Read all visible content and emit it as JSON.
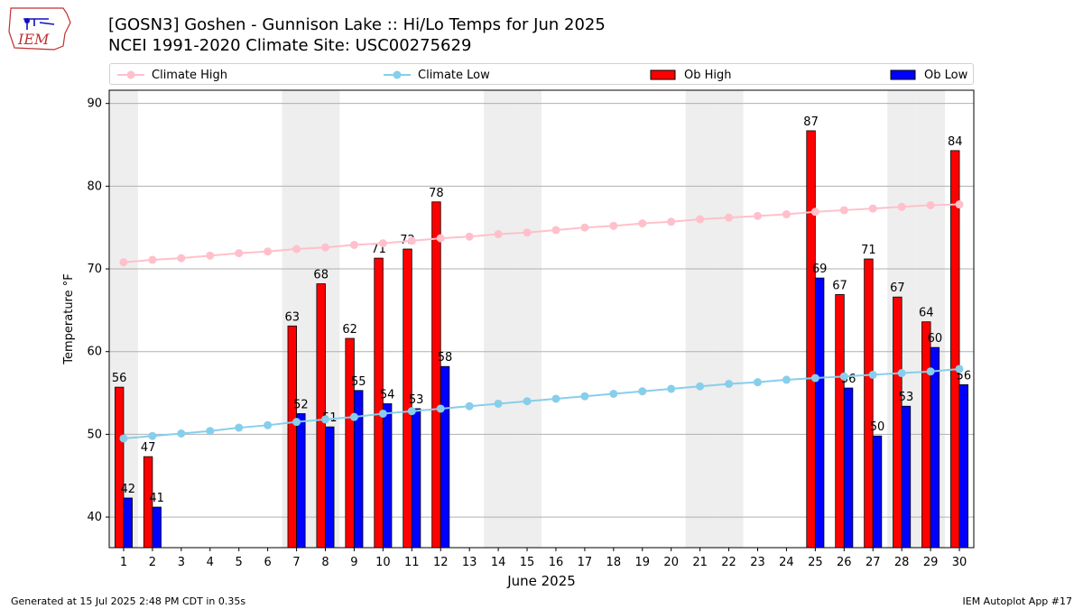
{
  "header": {
    "logo_text": "IEM",
    "title_line1": "[GOSN3] Goshen - Gunnison Lake :: Hi/Lo Temps for Jun 2025",
    "title_line2": "NCEI 1991-2020 Climate Site: USC00275629"
  },
  "legend": {
    "climate_high": "Climate High",
    "climate_low": "Climate Low",
    "ob_high": "Ob High",
    "ob_low": "Ob Low"
  },
  "colors": {
    "climate_high": "#ffc0cb",
    "climate_low": "#87ceeb",
    "ob_high": "#ff0000",
    "ob_low": "#0000ff",
    "weekend_band": "#eeeeee"
  },
  "chart_data": {
    "type": "bar",
    "xlabel": "June 2025",
    "ylabel": "Temperature °F",
    "xlim": [
      0.5,
      30.5
    ],
    "ylim": [
      36.3,
      91.6
    ],
    "yticks": [
      40,
      50,
      60,
      70,
      80,
      90
    ],
    "grid": "y",
    "legend_position": "top",
    "shaded_days": [
      1,
      7,
      8,
      14,
      15,
      21,
      22,
      28,
      29
    ],
    "days": [
      1,
      2,
      3,
      4,
      5,
      6,
      7,
      8,
      9,
      10,
      11,
      12,
      13,
      14,
      15,
      16,
      17,
      18,
      19,
      20,
      21,
      22,
      23,
      24,
      25,
      26,
      27,
      28,
      29,
      30
    ],
    "series": [
      {
        "name": "Ob High",
        "kind": "bar",
        "values": [
          55.7,
          47.3,
          null,
          null,
          null,
          null,
          63.1,
          68.2,
          61.6,
          71.3,
          72.4,
          78.1,
          null,
          null,
          null,
          null,
          null,
          null,
          null,
          null,
          null,
          null,
          null,
          null,
          86.7,
          66.9,
          71.2,
          66.6,
          63.6,
          84.3
        ],
        "labels": [
          "56",
          "47",
          null,
          null,
          null,
          null,
          "63",
          "68",
          "62",
          "71",
          "72",
          "78",
          null,
          null,
          null,
          null,
          null,
          null,
          null,
          null,
          null,
          null,
          null,
          null,
          "87",
          "67",
          "71",
          "67",
          "64",
          "84"
        ]
      },
      {
        "name": "Ob Low",
        "kind": "bar",
        "values": [
          42.3,
          41.2,
          null,
          null,
          null,
          null,
          52.5,
          50.9,
          55.3,
          53.7,
          53.1,
          58.2,
          null,
          null,
          null,
          null,
          null,
          null,
          null,
          null,
          null,
          null,
          null,
          null,
          68.9,
          55.6,
          49.8,
          53.4,
          60.5,
          56.0
        ],
        "labels": [
          "42",
          "41",
          null,
          null,
          null,
          null,
          "52",
          "51",
          "55",
          "54",
          "53",
          "58",
          null,
          null,
          null,
          null,
          null,
          null,
          null,
          null,
          null,
          null,
          null,
          null,
          "69",
          "56",
          "50",
          "53",
          "60",
          "56"
        ]
      },
      {
        "name": "Climate High",
        "kind": "line",
        "values": [
          70.8,
          71.1,
          71.3,
          71.6,
          71.9,
          72.1,
          72.4,
          72.6,
          72.9,
          73.1,
          73.4,
          73.7,
          73.9,
          74.2,
          74.4,
          74.7,
          75.0,
          75.2,
          75.5,
          75.7,
          76.0,
          76.2,
          76.4,
          76.6,
          76.9,
          77.1,
          77.3,
          77.5,
          77.7,
          77.8
        ]
      },
      {
        "name": "Climate Low",
        "kind": "line",
        "values": [
          49.5,
          49.8,
          50.1,
          50.4,
          50.8,
          51.1,
          51.5,
          51.8,
          52.1,
          52.5,
          52.8,
          53.1,
          53.4,
          53.7,
          54.0,
          54.3,
          54.6,
          54.9,
          55.2,
          55.5,
          55.8,
          56.1,
          56.3,
          56.6,
          56.8,
          57.0,
          57.2,
          57.4,
          57.6,
          57.9
        ]
      }
    ]
  },
  "footer": {
    "generated": "Generated at 15 Jul 2025 2:48 PM CDT in 0.35s",
    "app": "IEM Autoplot App #17"
  }
}
